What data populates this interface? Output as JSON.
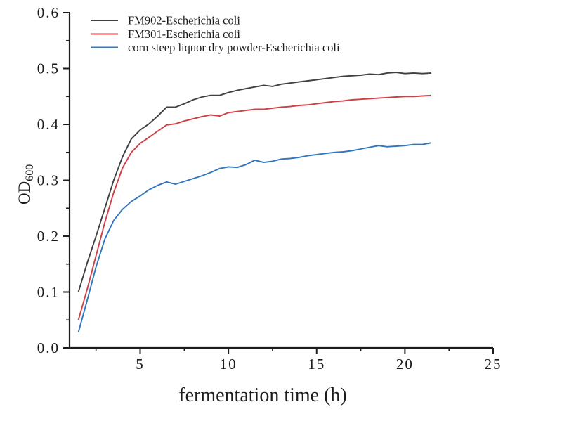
{
  "chart_data": {
    "type": "line",
    "title": "",
    "xlabel": "fermentation time (h)",
    "ylabel": "OD",
    "ylabel_subscript": "600",
    "xlim": [
      1,
      25
    ],
    "ylim": [
      0,
      0.6
    ],
    "grid": false,
    "legend_position": "top-left-inside",
    "x_major_ticks": [
      5,
      10,
      15,
      20,
      25
    ],
    "x_tick_labels": [
      "5",
      "10",
      "15",
      "20",
      "25"
    ],
    "x_minor_ticks": [
      2.5,
      7.5,
      12.5,
      17.5,
      22.5
    ],
    "y_major_ticks": [
      0.0,
      0.1,
      0.2,
      0.3,
      0.4,
      0.5,
      0.6
    ],
    "y_tick_labels": [
      "0.0",
      "0.1",
      "0.2",
      "0.3",
      "0.4",
      "0.5",
      "0.6"
    ],
    "y_minor_ticks": [
      0.05,
      0.15,
      0.25,
      0.35,
      0.45,
      0.55
    ],
    "x": [
      1.5,
      2,
      2.5,
      3,
      3.5,
      4,
      4.5,
      5,
      5.5,
      6,
      6.5,
      7,
      7.5,
      8,
      8.5,
      9,
      9.5,
      10,
      10.5,
      11,
      11.5,
      12,
      12.5,
      13,
      13.5,
      14,
      14.5,
      15,
      15.5,
      16,
      16.5,
      17,
      17.5,
      18,
      18.5,
      19,
      19.5,
      20,
      20.5,
      21,
      21.5
    ],
    "series": [
      {
        "name": "FM902-Escherichia coli",
        "color": "#404042",
        "values": [
          0.1,
          0.152,
          0.2,
          0.25,
          0.3,
          0.342,
          0.374,
          0.39,
          0.401,
          0.415,
          0.431,
          0.431,
          0.437,
          0.444,
          0.449,
          0.452,
          0.452,
          0.457,
          0.461,
          0.464,
          0.467,
          0.47,
          0.468,
          0.472,
          0.474,
          0.476,
          0.478,
          0.48,
          0.482,
          0.484,
          0.486,
          0.487,
          0.488,
          0.49,
          0.489,
          0.492,
          0.493,
          0.491,
          0.492,
          0.491,
          0.492
        ]
      },
      {
        "name": "FM301-Escherichia coli",
        "color": "#cd4045",
        "values": [
          0.05,
          0.105,
          0.165,
          0.225,
          0.278,
          0.322,
          0.35,
          0.366,
          0.377,
          0.388,
          0.399,
          0.401,
          0.406,
          0.41,
          0.414,
          0.417,
          0.415,
          0.421,
          0.423,
          0.425,
          0.427,
          0.427,
          0.429,
          0.431,
          0.432,
          0.434,
          0.435,
          0.437,
          0.439,
          0.441,
          0.442,
          0.444,
          0.445,
          0.446,
          0.447,
          0.448,
          0.449,
          0.45,
          0.45,
          0.451,
          0.452
        ]
      },
      {
        "name": "corn steep liquor dry powder-Escherichia coli",
        "color": "#3077c0",
        "values": [
          0.028,
          0.085,
          0.145,
          0.195,
          0.228,
          0.248,
          0.262,
          0.272,
          0.283,
          0.291,
          0.297,
          0.293,
          0.298,
          0.303,
          0.308,
          0.314,
          0.321,
          0.324,
          0.323,
          0.328,
          0.336,
          0.332,
          0.334,
          0.338,
          0.339,
          0.341,
          0.344,
          0.346,
          0.348,
          0.35,
          0.351,
          0.353,
          0.356,
          0.359,
          0.362,
          0.36,
          0.361,
          0.362,
          0.364,
          0.364,
          0.367
        ]
      }
    ]
  },
  "colors": {
    "background": "#ffffff",
    "axis": "#1c1c1c",
    "text": "#1c1c1c"
  }
}
